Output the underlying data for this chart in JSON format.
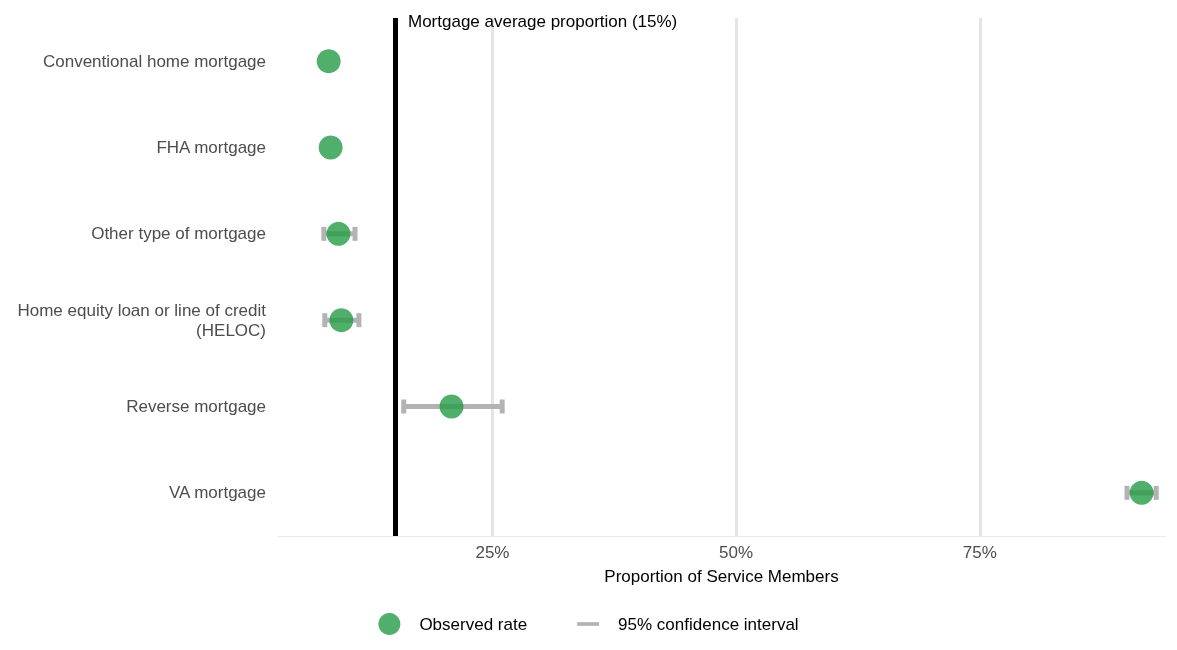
{
  "chart_data": {
    "type": "scatter",
    "orientation": "horizontal",
    "xlabel": "Proportion of Service Members",
    "categories": [
      "Conventional home mortgage",
      "FHA mortgage",
      "Other type of mortgage",
      "Home equity loan or line of credit (HELOC)",
      "Reverse mortgage",
      "VA mortgage"
    ],
    "series": [
      {
        "name": "Observed rate",
        "color": "#239b46",
        "values": [
          8.2,
          8.4,
          9.2,
          9.5,
          20.8,
          91.6
        ],
        "errors": [
          null,
          null,
          [
            7.7,
            10.9
          ],
          [
            7.8,
            11.3
          ],
          [
            15.9,
            26.0
          ],
          [
            90.1,
            93.1
          ]
        ]
      }
    ],
    "annotations": [
      "95% confidence interval"
    ],
    "xlim": [
      3,
      94
    ],
    "xticks": [
      {
        "value": 25,
        "label": "25%"
      },
      {
        "value": 50,
        "label": "50%"
      },
      {
        "value": 75,
        "label": "75%"
      }
    ],
    "grid": "x",
    "legend": "bottom",
    "marker": "circle",
    "ref_lines": [
      {
        "axis": "x",
        "value": 15,
        "label": "Mortgage average proportion (15%)",
        "color": "#000000"
      }
    ]
  }
}
